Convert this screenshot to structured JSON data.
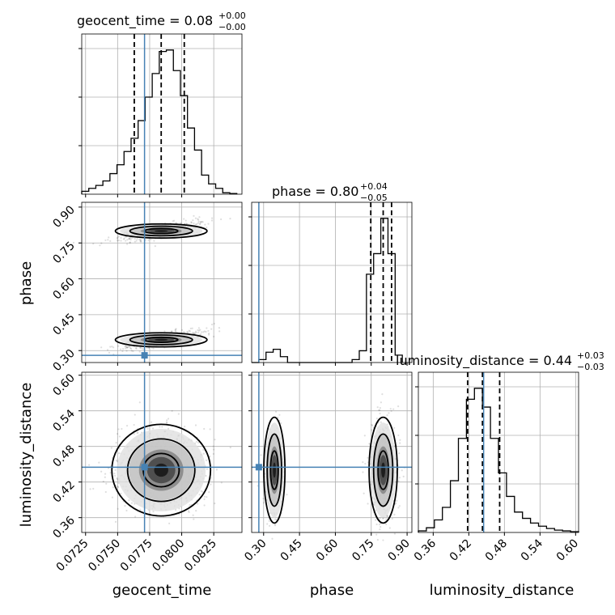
{
  "chart_data": {
    "type": "scatter",
    "parameters": [
      "geocent_time",
      "phase",
      "luminosity_distance"
    ],
    "truths": {
      "geocent_time": 0.0771,
      "phase": 0.28,
      "luminosity_distance": 0.445
    },
    "ranges": {
      "geocent_time": [
        0.0722,
        0.0847
      ],
      "phase": [
        0.25,
        0.92
      ],
      "luminosity_distance": [
        0.335,
        0.605
      ]
    },
    "ticks": {
      "geocent_time": [
        "0.0725",
        "0.0750",
        "0.0775",
        "0.0800",
        "0.0825"
      ],
      "phase": [
        "0.30",
        "0.45",
        "0.60",
        "0.75",
        "0.90"
      ],
      "luminosity_distance": [
        "0.36",
        "0.42",
        "0.48",
        "0.54",
        "0.60"
      ]
    },
    "titles": [
      {
        "param": "geocent_time",
        "label": "geocent_time = 0.08",
        "plus": "+0.00",
        "minus": "−0.00"
      },
      {
        "param": "phase",
        "label": "phase = 0.80",
        "plus": "+0.04",
        "minus": "−0.05"
      },
      {
        "param": "luminosity_distance",
        "label": "luminosity_distance = 0.44",
        "plus": "+0.03",
        "minus": "−0.03"
      }
    ],
    "quantiles": {
      "geocent_time": [
        0.0763,
        0.0784,
        0.0802
      ],
      "phase": [
        0.748,
        0.8,
        0.835
      ],
      "luminosity_distance": [
        0.418,
        0.443,
        0.472
      ]
    },
    "histograms": {
      "geocent_time": {
        "edges": [
          0.0722,
          0.07275,
          0.0733,
          0.07385,
          0.0744,
          0.07495,
          0.0755,
          0.07605,
          0.0766,
          0.07715,
          0.0777,
          0.07825,
          0.0788,
          0.07935,
          0.0799,
          0.08045,
          0.081,
          0.08155,
          0.0821,
          0.08265,
          0.0832,
          0.08375,
          0.0843
        ],
        "counts": [
          0.02,
          0.04,
          0.06,
          0.09,
          0.14,
          0.2,
          0.29,
          0.38,
          0.5,
          0.66,
          0.82,
          0.97,
          0.98,
          0.84,
          0.67,
          0.45,
          0.3,
          0.13,
          0.07,
          0.04,
          0.01,
          0.005
        ]
      },
      "phase": {
        "edges": [
          0.25,
          0.28,
          0.31,
          0.34,
          0.37,
          0.4,
          0.43,
          0.46,
          0.49,
          0.52,
          0.55,
          0.58,
          0.61,
          0.64,
          0.67,
          0.7,
          0.73,
          0.76,
          0.79,
          0.82,
          0.85,
          0.88
        ],
        "counts": [
          0,
          0.02,
          0.07,
          0.09,
          0.04,
          0.0,
          0,
          0,
          0,
          0,
          0,
          0,
          0,
          0,
          0.02,
          0.08,
          0.6,
          0.74,
          0.98,
          0.74,
          0.05
        ]
      },
      "luminosity_distance": {
        "edges": [
          0.335,
          0.3485,
          0.362,
          0.3755,
          0.389,
          0.4025,
          0.416,
          0.4295,
          0.443,
          0.4565,
          0.47,
          0.4835,
          0.497,
          0.5105,
          0.524,
          0.5375,
          0.551,
          0.5645,
          0.578,
          0.5915,
          0.605
        ],
        "counts": [
          0.01,
          0.03,
          0.08,
          0.16,
          0.33,
          0.6,
          0.85,
          0.92,
          0.8,
          0.6,
          0.38,
          0.23,
          0.13,
          0.09,
          0.06,
          0.04,
          0.025,
          0.015,
          0.01,
          0.005
        ]
      }
    },
    "contours": {
      "phase_vs_geocent_time": {
        "centers": [
          [
            0.0784,
            0.8
          ],
          [
            0.0784,
            0.345
          ]
        ],
        "levels": [
          1,
          2,
          3
        ]
      },
      "luminosity_distance_vs_geocent_time": {
        "centers": [
          [
            0.0784,
            0.44
          ]
        ],
        "levels": [
          1,
          2,
          3
        ]
      },
      "luminosity_distance_vs_phase": {
        "centers": [
          [
            0.8,
            0.44
          ],
          [
            0.345,
            0.44
          ]
        ],
        "levels": [
          1,
          2,
          3
        ]
      }
    },
    "grid": true
  }
}
